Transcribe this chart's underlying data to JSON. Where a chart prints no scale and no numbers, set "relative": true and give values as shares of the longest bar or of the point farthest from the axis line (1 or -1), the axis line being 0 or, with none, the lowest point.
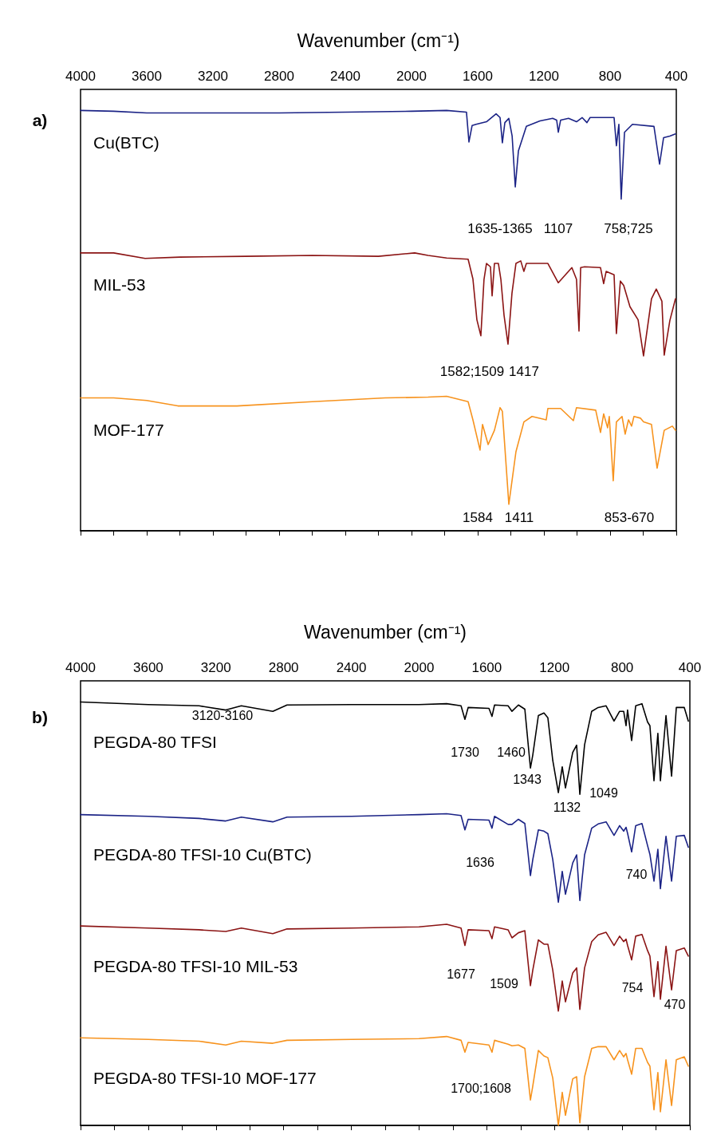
{
  "chart_data": [
    {
      "type": "line",
      "relative": true,
      "xlabel": "Wavenumber (cm⁻¹)",
      "xlim": [
        4000,
        400
      ],
      "xticks": [
        4000,
        {
          "value": 3800,
          "label": null
        },
        3600,
        {
          "value": 3400,
          "label": null
        },
        3200,
        {
          "value": 3000,
          "label": null
        },
        2800,
        {
          "value": 2600,
          "label": null
        },
        2400,
        {
          "value": 2200,
          "label": null
        },
        2000,
        {
          "value": 1800,
          "label": null
        },
        1600,
        {
          "value": 1400,
          "label": null
        },
        1200,
        {
          "value": 1000,
          "label": null
        },
        800,
        {
          "value": 600,
          "label": null
        },
        400
      ],
      "grid": false,
      "legend": false,
      "marker": "none",
      "line_style": "solid",
      "series": [
        {
          "name": "Cu(BTC)",
          "color": "#1b2386",
          "x": [
            4000,
            3800,
            3600,
            3200,
            2800,
            2400,
            2000,
            1788,
            1668,
            1653,
            1634,
            1610,
            1547,
            1489,
            1465,
            1451,
            1436,
            1412,
            1392,
            1373,
            1354,
            1306,
            1224,
            1147,
            1123,
            1113,
            1099,
            1051,
            1003,
            969,
            940,
            921,
            776,
            762,
            747,
            733,
            713,
            665,
            535,
            501,
            477,
            439,
            405
          ],
          "values": [
            1.0,
            0.998,
            0.994,
            0.994,
            0.994,
            0.996,
            0.998,
            1.0,
            0.996,
            0.925,
            0.964,
            0.967,
            0.973,
            0.992,
            0.983,
            0.923,
            0.971,
            0.981,
            0.939,
            0.818,
            0.904,
            0.962,
            0.975,
            0.981,
            0.977,
            0.948,
            0.977,
            0.981,
            0.973,
            0.983,
            0.971,
            0.983,
            0.983,
            0.916,
            0.967,
            0.789,
            0.948,
            0.967,
            0.962,
            0.872,
            0.935,
            0.939,
            0.944
          ]
        },
        {
          "name": "MIL-53",
          "color": "#8b1414",
          "x": [
            4000,
            3800,
            3610,
            3400,
            3000,
            2600,
            2200,
            1981,
            1900,
            1788,
            1658,
            1629,
            1605,
            1581,
            1562,
            1547,
            1523,
            1513,
            1499,
            1475,
            1460,
            1441,
            1417,
            1393,
            1369,
            1340,
            1321,
            1306,
            1176,
            1113,
            1031,
            1003,
            988,
            978,
            954,
            858,
            839,
            824,
            776,
            762,
            738,
            718,
            680,
            631,
            598,
            550,
            521,
            487,
            473,
            439,
            405
          ],
          "values": [
            0.661,
            0.661,
            0.648,
            0.651,
            0.653,
            0.655,
            0.653,
            0.661,
            0.655,
            0.649,
            0.646,
            0.599,
            0.502,
            0.464,
            0.598,
            0.636,
            0.628,
            0.559,
            0.636,
            0.636,
            0.598,
            0.513,
            0.444,
            0.565,
            0.636,
            0.642,
            0.617,
            0.636,
            0.636,
            0.59,
            0.626,
            0.598,
            0.475,
            0.626,
            0.628,
            0.626,
            0.588,
            0.617,
            0.609,
            0.469,
            0.594,
            0.584,
            0.533,
            0.502,
            0.416,
            0.552,
            0.575,
            0.546,
            0.418,
            0.5,
            0.552
          ]
        },
        {
          "name": "MOF-177",
          "color": "#f7931e",
          "x": [
            4000,
            3800,
            3600,
            3412,
            3055,
            2600,
            2159,
            1900,
            1788,
            1658,
            1629,
            1586,
            1571,
            1537,
            1499,
            1465,
            1451,
            1412,
            1369,
            1321,
            1272,
            1186,
            1176,
            1099,
            1022,
            1003,
            887,
            858,
            839,
            815,
            805,
            781,
            762,
            728,
            709,
            689,
            670,
            656,
            617,
            598,
            550,
            516,
            473,
            424,
            405
          ],
          "values": [
            0.316,
            0.316,
            0.31,
            0.297,
            0.297,
            0.307,
            0.316,
            0.318,
            0.32,
            0.307,
            0.264,
            0.192,
            0.253,
            0.205,
            0.239,
            0.293,
            0.284,
            0.063,
            0.188,
            0.259,
            0.272,
            0.264,
            0.291,
            0.291,
            0.262,
            0.293,
            0.287,
            0.234,
            0.278,
            0.245,
            0.272,
            0.119,
            0.259,
            0.272,
            0.23,
            0.264,
            0.249,
            0.272,
            0.268,
            0.259,
            0.253,
            0.149,
            0.239,
            0.249,
            0.239
          ]
        }
      ],
      "annotations": [
        "a)",
        "1635-1365",
        "1107",
        "758;725",
        "1582;1509",
        "1417",
        "1584",
        "1411",
        "853-670"
      ]
    },
    {
      "type": "line",
      "relative": true,
      "xlabel": "Wavenumber (cm⁻¹)",
      "xlim": [
        4000,
        400
      ],
      "xticks": [
        4000,
        {
          "value": 3800,
          "label": null
        },
        3600,
        {
          "value": 3400,
          "label": null
        },
        3200,
        {
          "value": 3000,
          "label": null
        },
        2800,
        {
          "value": 2600,
          "label": null
        },
        2400,
        {
          "value": 2200,
          "label": null
        },
        2000,
        {
          "value": 1800,
          "label": null
        },
        1600,
        {
          "value": 1400,
          "label": null
        },
        1200,
        {
          "value": 1000,
          "label": null
        },
        800,
        {
          "value": 600,
          "label": null
        },
        400
      ],
      "grid": false,
      "legend": false,
      "marker": "none",
      "line_style": "solid",
      "series": [
        {
          "name": "PEGDA-80 TFSI",
          "color": "#000000",
          "x": [
            4000,
            3600,
            3300,
            3142,
            3050,
            2864,
            2780,
            2400,
            2000,
            1837,
            1752,
            1729,
            1710,
            1587,
            1569,
            1554,
            1474,
            1451,
            1413,
            1375,
            1342,
            1328,
            1295,
            1262,
            1239,
            1210,
            1177,
            1154,
            1135,
            1092,
            1069,
            1050,
            1022,
            980,
            942,
            895,
            848,
            815,
            791,
            777,
            768,
            744,
            720,
            683,
            650,
            636,
            612,
            589,
            574,
            541,
            508,
            480,
            433,
            409
          ],
          "values": [
            1.0,
            0.994,
            0.991,
            0.981,
            0.991,
            0.978,
            0.993,
            0.994,
            0.994,
            0.996,
            0.991,
            0.959,
            0.987,
            0.985,
            0.966,
            0.993,
            0.991,
            0.978,
            0.993,
            0.983,
            0.844,
            0.875,
            0.968,
            0.974,
            0.963,
            0.862,
            0.786,
            0.847,
            0.797,
            0.881,
            0.898,
            0.782,
            0.899,
            0.978,
            0.987,
            0.991,
            0.955,
            0.978,
            0.978,
            0.944,
            0.981,
            0.909,
            0.991,
            0.996,
            0.953,
            0.944,
            0.814,
            0.926,
            0.814,
            0.968,
            0.825,
            0.987,
            0.987,
            0.955
          ]
        },
        {
          "name": "PEGDA-80 TFSI-10 Cu(BTC)",
          "color": "#1b2386",
          "x": [
            4000,
            3600,
            3300,
            3142,
            3050,
            2864,
            2780,
            2400,
            2000,
            1837,
            1752,
            1729,
            1710,
            1587,
            1569,
            1554,
            1474,
            1451,
            1413,
            1375,
            1342,
            1328,
            1295,
            1262,
            1239,
            1210,
            1177,
            1154,
            1135,
            1092,
            1069,
            1050,
            1022,
            980,
            942,
            895,
            848,
            815,
            791,
            777,
            768,
            744,
            720,
            683,
            650,
            636,
            612,
            589,
            574,
            541,
            508,
            480,
            433,
            409
          ],
          "values": [
            0.734,
            0.73,
            0.725,
            0.719,
            0.728,
            0.717,
            0.728,
            0.73,
            0.734,
            0.736,
            0.732,
            0.698,
            0.723,
            0.721,
            0.702,
            0.73,
            0.711,
            0.711,
            0.723,
            0.713,
            0.59,
            0.628,
            0.698,
            0.695,
            0.689,
            0.628,
            0.527,
            0.6,
            0.546,
            0.62,
            0.639,
            0.531,
            0.639,
            0.702,
            0.712,
            0.717,
            0.685,
            0.708,
            0.695,
            0.704,
            0.69,
            0.646,
            0.708,
            0.713,
            0.661,
            0.64,
            0.577,
            0.652,
            0.559,
            0.683,
            0.577,
            0.683,
            0.685,
            0.657
          ]
        },
        {
          "name": "PEGDA-80 TFSI-10 MIL-53",
          "color": "#8b1414",
          "x": [
            4000,
            3600,
            3300,
            3142,
            3050,
            2864,
            2780,
            2400,
            2000,
            1837,
            1752,
            1729,
            1710,
            1587,
            1569,
            1554,
            1474,
            1451,
            1413,
            1375,
            1342,
            1328,
            1295,
            1262,
            1239,
            1210,
            1177,
            1154,
            1135,
            1092,
            1069,
            1050,
            1022,
            980,
            942,
            895,
            848,
            815,
            791,
            777,
            768,
            744,
            720,
            683,
            650,
            636,
            612,
            589,
            574,
            541,
            508,
            480,
            433,
            409
          ],
          "values": [
            0.471,
            0.466,
            0.462,
            0.458,
            0.466,
            0.453,
            0.464,
            0.466,
            0.469,
            0.475,
            0.466,
            0.425,
            0.462,
            0.46,
            0.441,
            0.469,
            0.462,
            0.443,
            0.455,
            0.46,
            0.33,
            0.367,
            0.438,
            0.428,
            0.428,
            0.367,
            0.27,
            0.341,
            0.292,
            0.36,
            0.372,
            0.274,
            0.372,
            0.434,
            0.45,
            0.456,
            0.425,
            0.447,
            0.434,
            0.44,
            0.425,
            0.391,
            0.447,
            0.451,
            0.413,
            0.4,
            0.304,
            0.387,
            0.298,
            0.423,
            0.32,
            0.413,
            0.419,
            0.4
          ]
        },
        {
          "name": "PEGDA-80 TFSI-10 MOF-177",
          "color": "#f7931e",
          "x": [
            4000,
            3600,
            3300,
            3142,
            3050,
            2864,
            2780,
            2400,
            2000,
            1837,
            1752,
            1729,
            1710,
            1587,
            1569,
            1554,
            1474,
            1451,
            1413,
            1375,
            1342,
            1328,
            1295,
            1262,
            1239,
            1210,
            1177,
            1154,
            1135,
            1092,
            1069,
            1050,
            1022,
            980,
            942,
            895,
            848,
            815,
            791,
            777,
            768,
            744,
            720,
            683,
            650,
            636,
            612,
            589,
            574,
            541,
            508,
            480,
            433,
            409
          ],
          "values": [
            0.207,
            0.203,
            0.199,
            0.19,
            0.199,
            0.194,
            0.201,
            0.203,
            0.205,
            0.21,
            0.201,
            0.173,
            0.196,
            0.19,
            0.173,
            0.201,
            0.192,
            0.188,
            0.19,
            0.182,
            0.06,
            0.093,
            0.177,
            0.164,
            0.16,
            0.112,
            0.0,
            0.078,
            0.024,
            0.11,
            0.115,
            0.006,
            0.115,
            0.182,
            0.186,
            0.186,
            0.155,
            0.177,
            0.162,
            0.17,
            0.155,
            0.121,
            0.182,
            0.182,
            0.149,
            0.14,
            0.037,
            0.125,
            0.032,
            0.155,
            0.047,
            0.155,
            0.162,
            0.14
          ]
        }
      ],
      "annotations": [
        "b)",
        "3120-3160",
        "1730",
        "1460",
        "1343",
        "1132",
        "1049",
        "1636",
        "740",
        "1677",
        "1509",
        "754",
        "470",
        "1700;1608"
      ]
    }
  ]
}
